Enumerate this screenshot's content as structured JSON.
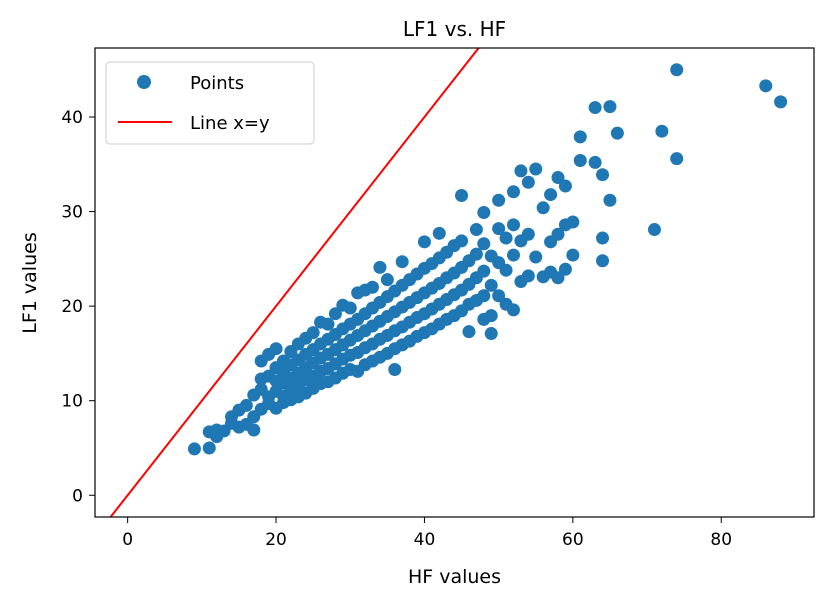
{
  "chart_data": {
    "type": "scatter",
    "title": "LF1 vs. HF",
    "xlabel": "HF values",
    "ylabel": "LF1 values",
    "xlim": [
      -4.4,
      92.5
    ],
    "ylim": [
      -2.3,
      47.3
    ],
    "xticks": [
      0,
      20,
      40,
      60,
      80
    ],
    "yticks": [
      0,
      10,
      20,
      30,
      40
    ],
    "grid": false,
    "legend_position": "top-left",
    "colors": {
      "points": "#1f77b4",
      "line": "#ff0000"
    },
    "series": [
      {
        "name": "Points",
        "kind": "scatter",
        "points": [
          [
            9,
            4.9
          ],
          [
            11,
            5
          ],
          [
            11,
            6.7
          ],
          [
            12,
            6.2
          ],
          [
            12,
            6.9
          ],
          [
            13,
            6.8
          ],
          [
            14,
            7.6
          ],
          [
            14,
            8.3
          ],
          [
            15,
            7.2
          ],
          [
            15,
            9
          ],
          [
            16,
            7.5
          ],
          [
            16,
            9.5
          ],
          [
            17,
            8.3
          ],
          [
            17,
            10.6
          ],
          [
            17,
            6.9
          ],
          [
            18,
            9.1
          ],
          [
            18,
            11.2
          ],
          [
            18,
            12.3
          ],
          [
            18,
            14.2
          ],
          [
            19,
            9.7
          ],
          [
            19,
            10.4
          ],
          [
            19,
            12.6
          ],
          [
            19,
            14.9
          ],
          [
            20,
            9.2
          ],
          [
            20,
            11
          ],
          [
            20,
            12.1
          ],
          [
            20,
            13.5
          ],
          [
            20,
            15.5
          ],
          [
            21,
            9.8
          ],
          [
            21,
            10.5
          ],
          [
            21,
            11.9
          ],
          [
            21,
            13
          ],
          [
            21,
            14.2
          ],
          [
            22,
            10.1
          ],
          [
            22,
            11.3
          ],
          [
            22,
            12.4
          ],
          [
            22,
            13.8
          ],
          [
            22,
            15.2
          ],
          [
            23,
            10.4
          ],
          [
            23,
            11.6
          ],
          [
            23,
            12.9
          ],
          [
            23,
            14.3
          ],
          [
            23,
            16
          ],
          [
            24,
            10.8
          ],
          [
            24,
            12.2
          ],
          [
            24,
            13.5
          ],
          [
            24,
            14.9
          ],
          [
            24,
            16.6
          ],
          [
            25,
            11.3
          ],
          [
            25,
            12.6
          ],
          [
            25,
            14
          ],
          [
            25,
            15.4
          ],
          [
            25,
            17.2
          ],
          [
            26,
            11.8
          ],
          [
            26,
            13.1
          ],
          [
            26,
            14.5
          ],
          [
            26,
            16
          ],
          [
            26,
            18.3
          ],
          [
            27,
            12
          ],
          [
            27,
            13.4
          ],
          [
            27,
            14.9
          ],
          [
            27,
            16.5
          ],
          [
            27,
            18.1
          ],
          [
            28,
            12.4
          ],
          [
            28,
            13.9
          ],
          [
            28,
            15.4
          ],
          [
            28,
            17
          ],
          [
            28,
            19.2
          ],
          [
            29,
            12.9
          ],
          [
            29,
            14.4
          ],
          [
            29,
            15.9
          ],
          [
            29,
            17.6
          ],
          [
            29,
            20.1
          ],
          [
            30,
            13.3
          ],
          [
            30,
            14.8
          ],
          [
            30,
            16.4
          ],
          [
            30,
            18.1
          ],
          [
            30,
            19.8
          ],
          [
            31,
            13.1
          ],
          [
            31,
            15.1
          ],
          [
            31,
            16.9
          ],
          [
            31,
            18.6
          ],
          [
            31,
            21.4
          ],
          [
            32,
            13.8
          ],
          [
            32,
            15.6
          ],
          [
            32,
            17.4
          ],
          [
            32,
            19.2
          ],
          [
            32,
            21.7
          ],
          [
            33,
            14.2
          ],
          [
            33,
            16
          ],
          [
            33,
            17.9
          ],
          [
            33,
            19.8
          ],
          [
            33,
            22
          ],
          [
            34,
            14.6
          ],
          [
            34,
            16.5
          ],
          [
            34,
            18.4
          ],
          [
            34,
            20.4
          ],
          [
            34,
            24.1
          ],
          [
            35,
            15
          ],
          [
            35,
            16.9
          ],
          [
            35,
            18.9
          ],
          [
            35,
            21
          ],
          [
            35,
            22.8
          ],
          [
            36,
            13.3
          ],
          [
            36,
            15.5
          ],
          [
            36,
            17.4
          ],
          [
            36,
            19.4
          ],
          [
            36,
            21.6
          ],
          [
            37,
            15.9
          ],
          [
            37,
            17.8
          ],
          [
            37,
            19.9
          ],
          [
            37,
            22.2
          ],
          [
            37,
            24.7
          ],
          [
            38,
            16.3
          ],
          [
            38,
            18.3
          ],
          [
            38,
            20.4
          ],
          [
            38,
            22.8
          ],
          [
            39,
            16.8
          ],
          [
            39,
            18.8
          ],
          [
            39,
            20.9
          ],
          [
            39,
            23.4
          ],
          [
            40,
            17.2
          ],
          [
            40,
            19.2
          ],
          [
            40,
            21.4
          ],
          [
            40,
            24
          ],
          [
            40,
            26.8
          ],
          [
            41,
            17.6
          ],
          [
            41,
            19.7
          ],
          [
            41,
            21.9
          ],
          [
            41,
            24.5
          ],
          [
            42,
            18.1
          ],
          [
            42,
            20.2
          ],
          [
            42,
            22.4
          ],
          [
            42,
            25.1
          ],
          [
            42,
            27.7
          ],
          [
            43,
            18.6
          ],
          [
            43,
            20.7
          ],
          [
            43,
            23
          ],
          [
            43,
            25.7
          ],
          [
            44,
            19
          ],
          [
            44,
            21.2
          ],
          [
            44,
            23.5
          ],
          [
            44,
            26.4
          ],
          [
            45,
            19.5
          ],
          [
            45,
            21.7
          ],
          [
            45,
            24.1
          ],
          [
            45,
            26.9
          ],
          [
            45,
            31.7
          ],
          [
            46,
            17.3
          ],
          [
            46,
            20.2
          ],
          [
            46,
            22.3
          ],
          [
            46,
            24.8
          ],
          [
            47,
            20.6
          ],
          [
            47,
            23
          ],
          [
            47,
            25.5
          ],
          [
            47,
            28.1
          ],
          [
            48,
            18.6
          ],
          [
            48,
            21.1
          ],
          [
            48,
            23.7
          ],
          [
            48,
            26.6
          ],
          [
            48,
            29.9
          ],
          [
            49,
            17.1
          ],
          [
            49,
            19
          ],
          [
            49,
            22.2
          ],
          [
            49,
            25.3
          ],
          [
            50,
            21.1
          ],
          [
            50,
            24.6
          ],
          [
            50,
            28.2
          ],
          [
            50,
            31.2
          ],
          [
            51,
            20.2
          ],
          [
            51,
            23.8
          ],
          [
            51,
            27.2
          ],
          [
            52,
            19.6
          ],
          [
            52,
            25.4
          ],
          [
            52,
            28.6
          ],
          [
            52,
            32.1
          ],
          [
            53,
            22.6
          ],
          [
            53,
            26.9
          ],
          [
            53,
            34.3
          ],
          [
            54,
            23.2
          ],
          [
            54,
            27.6
          ],
          [
            54,
            33.1
          ],
          [
            55,
            34.5
          ],
          [
            55,
            25.2
          ],
          [
            56,
            30.4
          ],
          [
            56,
            23.1
          ],
          [
            57,
            26.8
          ],
          [
            57,
            31.8
          ],
          [
            57,
            23.6
          ],
          [
            58,
            33.6
          ],
          [
            58,
            23
          ],
          [
            58,
            27.6
          ],
          [
            59,
            32.7
          ],
          [
            59,
            28.6
          ],
          [
            59,
            23.9
          ],
          [
            60,
            25.4
          ],
          [
            60,
            28.9
          ],
          [
            61,
            35.4
          ],
          [
            61,
            37.9
          ],
          [
            63,
            35.2
          ],
          [
            63,
            41
          ],
          [
            64,
            24.8
          ],
          [
            64,
            27.2
          ],
          [
            64,
            33.9
          ],
          [
            65,
            41.1
          ],
          [
            65,
            31.2
          ],
          [
            66,
            38.3
          ],
          [
            71,
            28.1
          ],
          [
            72,
            38.5
          ],
          [
            74,
            35.6
          ],
          [
            74,
            45
          ],
          [
            86,
            43.3
          ],
          [
            88,
            41.6
          ]
        ]
      },
      {
        "name": "Line x=y",
        "kind": "line",
        "points": [
          [
            -4.4,
            -4.4
          ],
          [
            47.3,
            47.3
          ]
        ]
      }
    ]
  }
}
